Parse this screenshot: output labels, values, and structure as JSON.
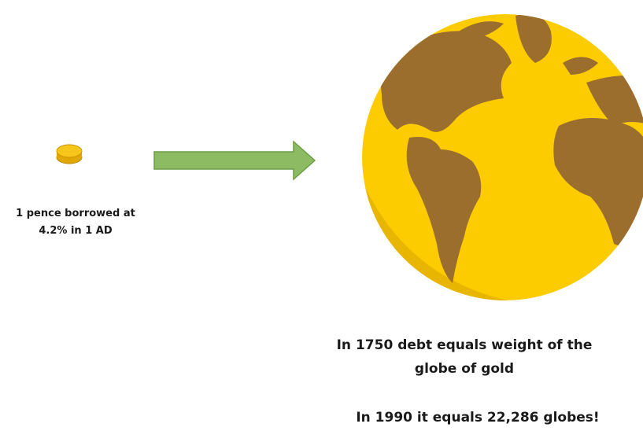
{
  "coin_caption": [
    "1 pence borrowed at",
    "4.2% in 1 AD"
  ],
  "globe_caption": [
    "In 1750 debt equals weight of the",
    "globe of gold"
  ],
  "footnote": "In 1990 it equals 22,286 globes!"
}
